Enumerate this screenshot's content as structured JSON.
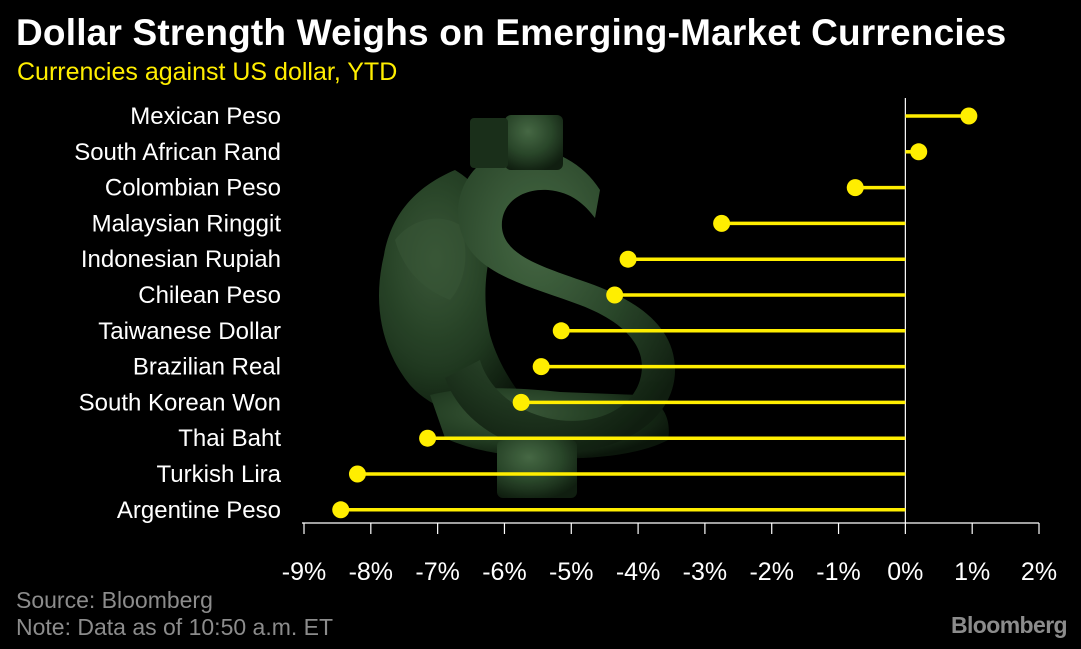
{
  "header": {
    "title": "Dollar Strength Weighs on Emerging-Market Currencies",
    "subtitle": "Currencies against US dollar, YTD"
  },
  "footer": {
    "source": "Source: Bloomberg",
    "note": "Note: Data as of 10:50 a.m. ET",
    "logo": "Bloomberg"
  },
  "colors": {
    "accent": "#ffee00",
    "background": "#000000",
    "text": "#ffffff",
    "muted": "#8c8c8c",
    "illustration": "#2c4a2c"
  },
  "illustration": "muscular-dollar-sign",
  "chart_data": {
    "type": "lollipop",
    "title": "Dollar Strength Weighs on Emerging-Market Currencies",
    "subtitle": "Currencies against US dollar, YTD",
    "xlabel": "",
    "ylabel": "",
    "xlim": [
      -9,
      2
    ],
    "x_ticks": [
      -9,
      -8,
      -7,
      -6,
      -5,
      -4,
      -3,
      -2,
      -1,
      0,
      1,
      2
    ],
    "x_tick_labels": [
      "-9%",
      "-8%",
      "-7%",
      "-6%",
      "-5%",
      "-4%",
      "-3%",
      "-2%",
      "-1%",
      "0%",
      "1%",
      "2%"
    ],
    "unit": "%",
    "grid": false,
    "legend": "none",
    "categories": [
      "Mexican Peso",
      "South African Rand",
      "Colombian Peso",
      "Malaysian Ringgit",
      "Indonesian Rupiah",
      "Chilean Peso",
      "Taiwanese Dollar",
      "Brazilian Real",
      "South Korean Won",
      "Thai Baht",
      "Turkish Lira",
      "Argentine Peso"
    ],
    "values": [
      0.95,
      0.2,
      -0.75,
      -2.75,
      -4.15,
      -4.35,
      -5.15,
      -5.45,
      -5.75,
      -7.15,
      -8.2,
      -8.45
    ]
  }
}
